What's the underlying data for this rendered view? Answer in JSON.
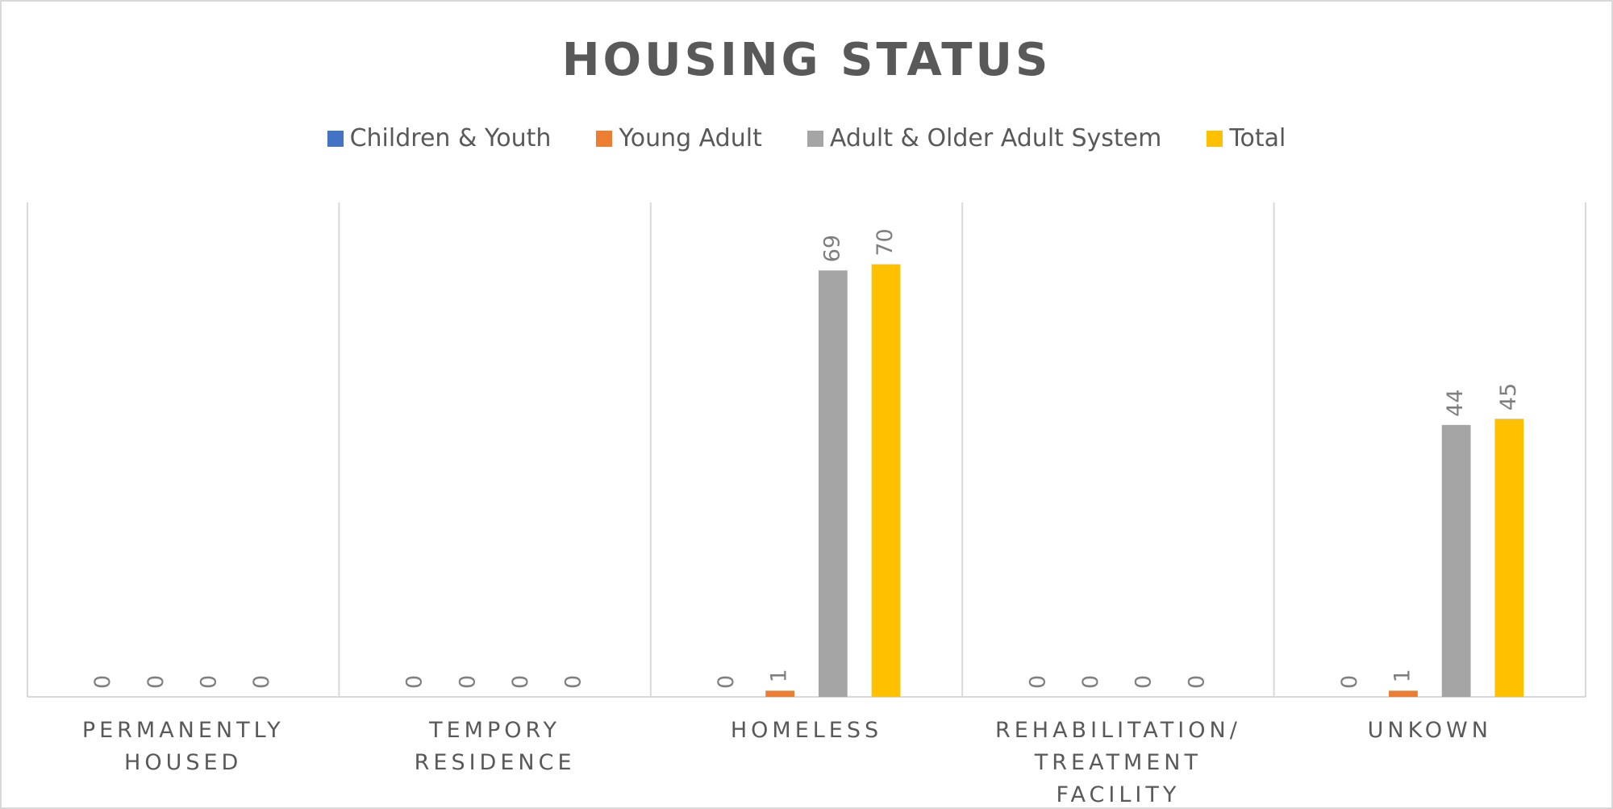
{
  "chart_data": {
    "type": "bar",
    "title": "HOUSING STATUS",
    "categories": [
      "PERMANENTLY HOUSED",
      "TEMPORY RESIDENCE",
      "HOMELESS",
      "REHABILITATION/ TREATMENT FACILITY",
      "UNKOWN"
    ],
    "series": [
      {
        "name": "Children & Youth",
        "color": "#4472c4",
        "values": [
          0,
          0,
          0,
          0,
          0
        ]
      },
      {
        "name": "Young Adult",
        "color": "#ed7d31",
        "values": [
          0,
          0,
          1,
          0,
          1
        ]
      },
      {
        "name": "Adult & Older Adult System",
        "color": "#a5a5a5",
        "values": [
          0,
          0,
          69,
          0,
          44
        ]
      },
      {
        "name": "Total",
        "color": "#ffc000",
        "values": [
          0,
          0,
          70,
          0,
          45
        ]
      }
    ],
    "ylim": [
      0,
      80
    ],
    "legend": "top",
    "data_labels": true,
    "category_separators": true
  }
}
